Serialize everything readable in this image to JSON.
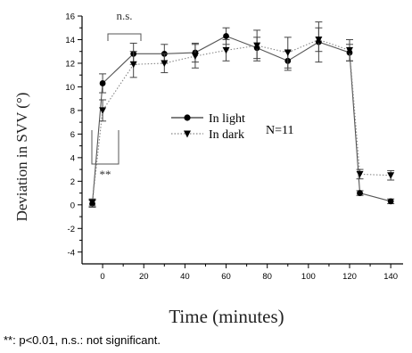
{
  "chart_data": {
    "type": "line",
    "xlabel": "Time (minutes)",
    "ylabel": "Deviation in SVV (°)",
    "xlim": [
      -10,
      146
    ],
    "ylim": [
      -5,
      16
    ],
    "x_ticks": [
      0,
      20,
      40,
      60,
      80,
      100,
      120,
      140
    ],
    "y_ticks": [
      -4,
      -2,
      0,
      2,
      4,
      6,
      8,
      10,
      12,
      14,
      16
    ],
    "legend_position": "center-right",
    "series": [
      {
        "name": "In light",
        "marker": "circle",
        "line_style": "solid",
        "color": "#000000",
        "x": [
          -5,
          0,
          15,
          30,
          45,
          60,
          75,
          90,
          105,
          120,
          125,
          140
        ],
        "y": [
          0.1,
          10.3,
          12.8,
          12.8,
          12.9,
          14.3,
          13.3,
          12.2,
          13.8,
          12.9,
          1.0,
          0.3
        ],
        "err": [
          0.3,
          0.8,
          0.9,
          0.8,
          0.8,
          0.7,
          0.9,
          0.8,
          1.7,
          0.7,
          0.2,
          0.2
        ]
      },
      {
        "name": "In dark",
        "marker": "triangle-down",
        "line_style": "dotted",
        "color": "#000000",
        "x": [
          -5,
          0,
          15,
          30,
          45,
          60,
          75,
          90,
          105,
          120,
          125,
          140
        ],
        "y": [
          0.2,
          8.0,
          11.9,
          12.0,
          12.6,
          13.1,
          13.5,
          12.9,
          14.0,
          13.1,
          2.6,
          2.5
        ],
        "err": [
          0.3,
          0.9,
          1.1,
          0.8,
          1.0,
          0.9,
          1.3,
          1.3,
          1.0,
          0.9,
          0.4,
          0.4
        ]
      }
    ],
    "annotations": {
      "ns_label": "n.s.",
      "sig_label": "**",
      "n_label": "N=11"
    }
  },
  "footnote": "**: p<0.01, n.s.: not significant."
}
